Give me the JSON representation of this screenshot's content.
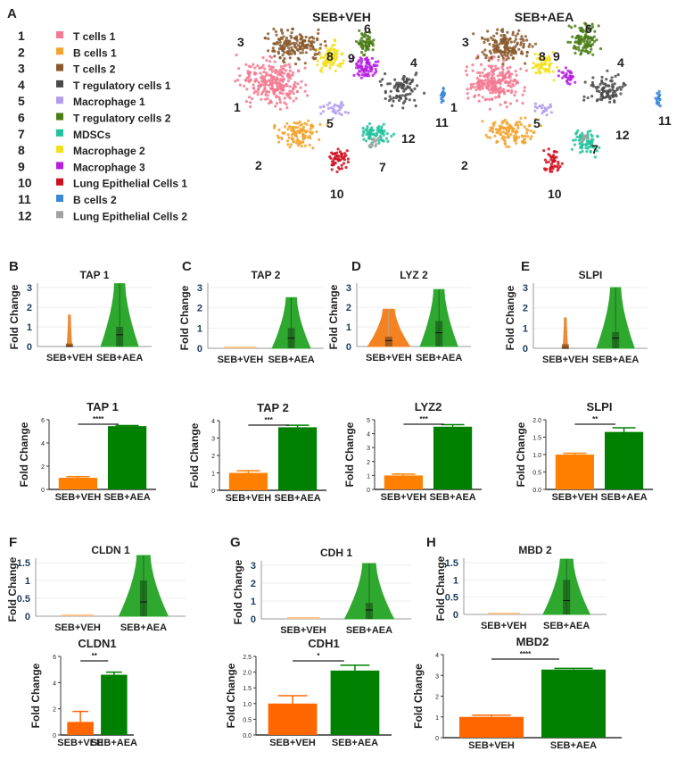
{
  "panel_letters": {
    "A": "A",
    "B": "B",
    "C": "C",
    "D": "D",
    "E": "E",
    "F": "F",
    "G": "G",
    "H": "H"
  },
  "legend": [
    {
      "num": "1",
      "label": "T cells 1",
      "color": "#f27a92"
    },
    {
      "num": "2",
      "label": "B cells 1",
      "color": "#f2a42e"
    },
    {
      "num": "3",
      "label": "T cells 2",
      "color": "#8a5a2e"
    },
    {
      "num": "4",
      "label": "T regulatory cells 1",
      "color": "#4a4a4a"
    },
    {
      "num": "5",
      "label": "Macrophage 1",
      "color": "#b39cec"
    },
    {
      "num": "6",
      "label": "T regulatory cells 2",
      "color": "#4b7d16"
    },
    {
      "num": "7",
      "label": "MDSCs",
      "color": "#22c29e"
    },
    {
      "num": "8",
      "label": "Macrophage 2",
      "color": "#f2e01e"
    },
    {
      "num": "9",
      "label": "Macrophage 3",
      "color": "#b51fe0"
    },
    {
      "num": "10",
      "label": "Lung Epithelial Cells 1",
      "color": "#d0101e"
    },
    {
      "num": "11",
      "label": "B cells 2",
      "color": "#3b8ad8"
    },
    {
      "num": "12",
      "label": "Lung Epithelial Cells 2",
      "color": "#a2a2a2"
    }
  ],
  "tsne": [
    {
      "title": "SEB+VEH"
    },
    {
      "title": "SEB+AEA"
    }
  ],
  "colors": {
    "veh_violin": "#f58220",
    "veh_bar": "#ff8000",
    "veh_bar2": "#ff6600",
    "aea": "#008000",
    "aea_violin": "#2ea82e"
  },
  "chart_data": [
    {
      "type": "violin",
      "panel": "B",
      "title": "TAP 1",
      "ylabel": "Fold Change",
      "categories": [
        "SEB+VEH",
        "SEB+AEA"
      ],
      "ylim": [
        0,
        3
      ],
      "yticks": [
        "0",
        "1",
        "2",
        "3"
      ],
      "groups": [
        {
          "max": 1.6,
          "q3": 0.15,
          "median": 0.0
        },
        {
          "max": 3.2,
          "q3": 1.0,
          "median": 0.6
        }
      ]
    },
    {
      "type": "violin",
      "panel": "C",
      "title": "TAP 2",
      "ylabel": "Fold Change",
      "categories": [
        "SEB+VEH",
        "SEB+AEA"
      ],
      "ylim": [
        0,
        3
      ],
      "yticks": [
        "0",
        "1",
        "2",
        "3"
      ],
      "groups": [
        {
          "max": 0,
          "q3": 0,
          "median": 0
        },
        {
          "max": 2.5,
          "q3": 1.0,
          "median": 0.5
        }
      ]
    },
    {
      "type": "violin",
      "panel": "D",
      "title": "LYZ 2",
      "ylabel": "Fold Change",
      "categories": [
        "SEB+VEH",
        "SEB+AEA"
      ],
      "ylim": [
        0,
        3
      ],
      "yticks": [
        "0",
        "1",
        "2",
        "3"
      ],
      "groups": [
        {
          "max": 1.9,
          "q3": 0.5,
          "median": 0.3
        },
        {
          "max": 2.9,
          "q3": 1.3,
          "median": 0.7
        }
      ]
    },
    {
      "type": "violin",
      "panel": "E",
      "title": "SLPI",
      "ylabel": "Fold Change",
      "categories": [
        "SEB+VEH",
        "SEB+AEA"
      ],
      "ylim": [
        0,
        3
      ],
      "yticks": [
        "0",
        "1",
        "2",
        "3"
      ],
      "groups": [
        {
          "max": 1.5,
          "q3": 0.2,
          "median": 0.0
        },
        {
          "max": 3.0,
          "q3": 0.8,
          "median": 0.5
        }
      ]
    },
    {
      "type": "bar",
      "panel": "B",
      "title": "TAP 1",
      "ylabel": "Fold Change",
      "categories": [
        "SEB+VEH",
        "SEB+AEA"
      ],
      "values": [
        1.0,
        5.45
      ],
      "errors": [
        0.1,
        0.05
      ],
      "ylim": [
        0,
        6
      ],
      "yticks": [
        "0",
        "2",
        "4",
        "6"
      ],
      "significance": "****"
    },
    {
      "type": "bar",
      "panel": "C",
      "title": "TAP 2",
      "ylabel": "Fold Change",
      "categories": [
        "SEB+VEH",
        "SEB+AEA"
      ],
      "values": [
        1.0,
        3.62
      ],
      "errors": [
        0.12,
        0.12
      ],
      "ylim": [
        0,
        4
      ],
      "yticks": [
        "0",
        "1",
        "2",
        "3",
        "4"
      ],
      "significance": "***"
    },
    {
      "type": "bar",
      "panel": "D",
      "title": "LYZ2",
      "ylabel": "Fold Change",
      "categories": [
        "SEB+VEH",
        "SEB+AEA"
      ],
      "values": [
        1.0,
        4.5
      ],
      "errors": [
        0.1,
        0.15
      ],
      "ylim": [
        0,
        5
      ],
      "yticks": [
        "0",
        "1",
        "2",
        "3",
        "4",
        "5"
      ],
      "significance": "***"
    },
    {
      "type": "bar",
      "panel": "E",
      "title": "SLPI",
      "ylabel": "Fold Change",
      "categories": [
        "SEB+VEH",
        "SEB+AEA"
      ],
      "values": [
        1.0,
        1.65
      ],
      "errors": [
        0.04,
        0.12
      ],
      "ylim": [
        0,
        2
      ],
      "yticks": [
        "0.0",
        "0.5",
        "1.0",
        "1.5",
        "2.0"
      ],
      "significance": "**"
    },
    {
      "type": "violin",
      "panel": "F",
      "title": "CLDN 1",
      "ylabel": "Fold Change",
      "categories": [
        "SEB+VEH",
        "SEB+AEA"
      ],
      "ylim": [
        0,
        1.5
      ],
      "yticks": [
        "0",
        "0.5",
        "1",
        "1.5"
      ],
      "groups": [
        {
          "max": 0,
          "q3": 0,
          "median": 0
        },
        {
          "max": 1.7,
          "q3": 1.0,
          "median": 0.4
        }
      ]
    },
    {
      "type": "violin",
      "panel": "G",
      "title": "CDH 1",
      "ylabel": "Fold Change",
      "categories": [
        "SEB+VEH",
        "SEB+AEA"
      ],
      "ylim": [
        0,
        3
      ],
      "yticks": [
        "0",
        "1",
        "2",
        "3"
      ],
      "groups": [
        {
          "max": 0,
          "q3": 0,
          "median": 0
        },
        {
          "max": 3.1,
          "q3": 0.9,
          "median": 0.5
        }
      ]
    },
    {
      "type": "violin",
      "panel": "H",
      "title": "MBD 2",
      "ylabel": "Fold Change",
      "categories": [
        "SEB+VEH",
        "SEB+AEA"
      ],
      "ylim": [
        0,
        1.5
      ],
      "yticks": [
        "0",
        "0.5",
        "1",
        "1.5"
      ],
      "groups": [
        {
          "max": 0,
          "q3": 0,
          "median": 0
        },
        {
          "max": 1.6,
          "q3": 1.0,
          "median": 0.4
        }
      ]
    },
    {
      "type": "bar",
      "panel": "F",
      "title": "CLDN1",
      "ylabel": "Fold Change",
      "categories": [
        "SEB+VEH",
        "SEB+AEA"
      ],
      "values": [
        1.0,
        4.6
      ],
      "errors": [
        0.8,
        0.2
      ],
      "ylim": [
        0,
        6
      ],
      "yticks": [
        "0",
        "2",
        "4",
        "6"
      ],
      "significance": "**"
    },
    {
      "type": "bar",
      "panel": "G",
      "title": "CDH1",
      "ylabel": "Fold Change",
      "categories": [
        "SEB+VEH",
        "SEB+AEA"
      ],
      "values": [
        1.0,
        2.05
      ],
      "errors": [
        0.25,
        0.17
      ],
      "ylim": [
        0,
        2.5
      ],
      "yticks": [
        "0.0",
        "0.5",
        "1.0",
        "1.5",
        "2.0",
        "2.5"
      ],
      "significance": "*"
    },
    {
      "type": "bar",
      "panel": "H",
      "title": "MBD2",
      "ylabel": "Fold Change",
      "categories": [
        "SEB+VEH",
        "SEB+AEA"
      ],
      "values": [
        1.0,
        3.28
      ],
      "errors": [
        0.08,
        0.06
      ],
      "ylim": [
        0,
        4
      ],
      "yticks": [
        "0",
        "1",
        "2",
        "3",
        "4"
      ],
      "significance": "****"
    }
  ]
}
